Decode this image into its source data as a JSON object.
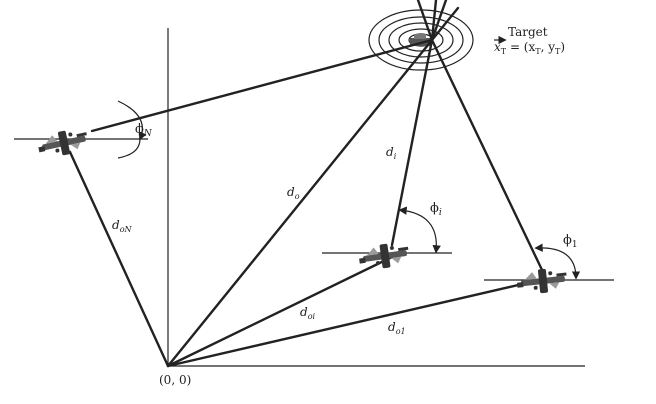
{
  "labels": {
    "target": "Target",
    "target_coord": "x",
    "target_coord_sub": "T",
    "target_eq": " = (x",
    "target_sub_x": "T",
    "target_sep": ", y",
    "target_sub_y": "T",
    "target_close": ")",
    "origin": "(0, 0)",
    "phi_N": "ϕ",
    "phi_N_sub": "N",
    "phi_i": "ϕ",
    "phi_i_sub": "i",
    "phi_1": "ϕ",
    "phi_1_sub": "1",
    "d_i": "d",
    "d_i_sub": "i",
    "d_o": "d",
    "d_o_sub": "o",
    "d_oN": "d",
    "d_oN_sub": "oN",
    "d_oi": "d",
    "d_oi_sub": "oi",
    "d_o1": "d",
    "d_o1_sub": "o1"
  },
  "colors": {
    "ink": "#222222",
    "background": "#ffffff"
  },
  "icons": {
    "vehicle": "uav-icon",
    "target": "target-rings-icon"
  }
}
